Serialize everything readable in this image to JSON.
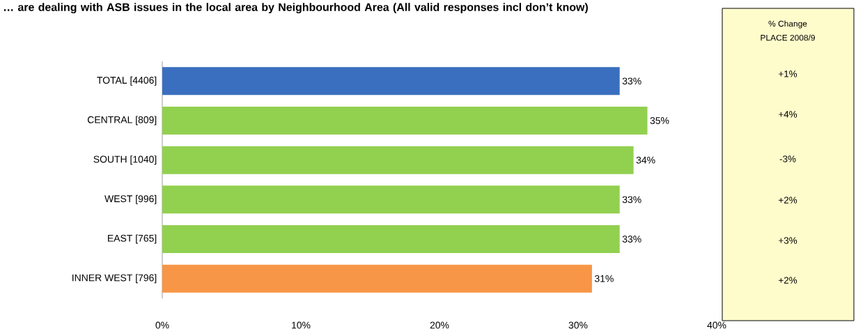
{
  "chart_data": {
    "type": "bar",
    "orientation": "horizontal",
    "title": "… are dealing with ASB issues in the local area by Neighbourhood Area (All valid responses incl don’t know)",
    "categories": [
      "TOTAL [4406]",
      "CENTRAL [809]",
      "SOUTH [1040]",
      "WEST [996]",
      "EAST [765]",
      "INNER WEST [796]"
    ],
    "values": [
      33,
      35,
      34,
      33,
      33,
      31
    ],
    "colors": [
      "#3a6fbf",
      "#92d050",
      "#92d050",
      "#92d050",
      "#92d050",
      "#f79646"
    ],
    "value_labels": [
      "33%",
      "35%",
      "34%",
      "33%",
      "33%",
      "31%"
    ],
    "xlim": [
      0,
      40
    ],
    "xticks": [
      {
        "value": 0,
        "label": "0%"
      },
      {
        "value": 10,
        "label": "10%"
      },
      {
        "value": 20,
        "label": "20%"
      },
      {
        "value": 30,
        "label": "30%"
      },
      {
        "value": 40,
        "label": "40%"
      }
    ],
    "annotations": [
      "% Change",
      "PLACE 2008/9",
      "+1%",
      "+4%",
      "-3%",
      "+2%",
      "+3%",
      "+2%"
    ],
    "grid": false
  }
}
